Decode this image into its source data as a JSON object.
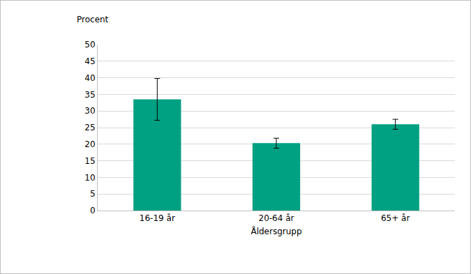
{
  "chart_data": {
    "type": "bar",
    "x_label": "Åldersgrupp",
    "y_label": "Procent",
    "categories": [
      "16-19 år",
      "20-64 år",
      "65+ år"
    ],
    "values": [
      33.5,
      20.3,
      26.0
    ],
    "errors": [
      6.3,
      1.5,
      1.5
    ],
    "color": "#00a082",
    "ylim": [
      0,
      50
    ],
    "yticks": [
      0,
      5,
      10,
      15,
      20,
      25,
      30,
      35,
      40,
      45,
      50
    ],
    "grid": true
  }
}
